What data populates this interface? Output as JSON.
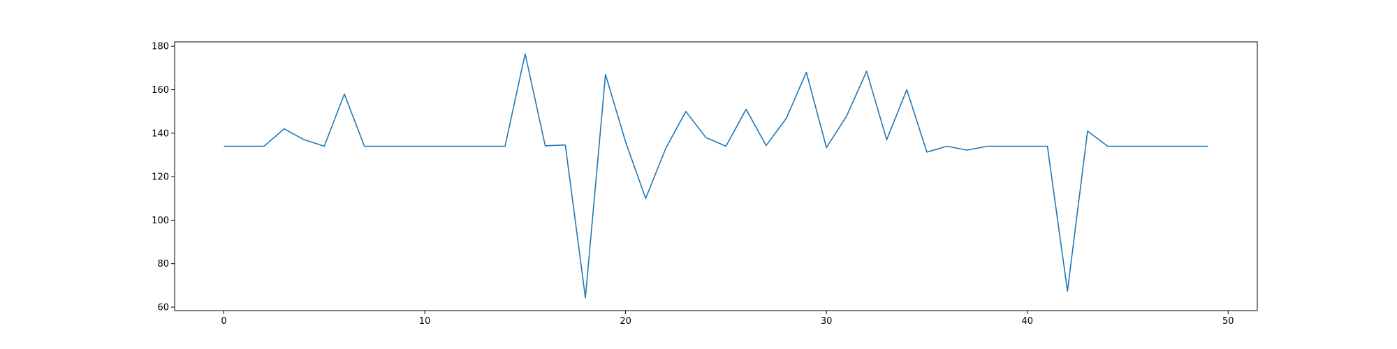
{
  "chart_data": {
    "type": "line",
    "title": "",
    "xlabel": "",
    "ylabel": "",
    "xlim": [
      -2.45,
      51.45
    ],
    "ylim": [
      58.4,
      182.0
    ],
    "x_ticks": [
      0,
      10,
      20,
      30,
      40,
      50
    ],
    "y_ticks": [
      60,
      80,
      100,
      120,
      140,
      160,
      180
    ],
    "grid": false,
    "legend": "none",
    "colors": {
      "series": "#1f77b4",
      "axis": "#000000",
      "background": "#ffffff"
    },
    "x": [
      0,
      1,
      2,
      3,
      4,
      5,
      6,
      7,
      8,
      9,
      10,
      11,
      12,
      13,
      14,
      15,
      16,
      17,
      18,
      19,
      20,
      21,
      22,
      23,
      24,
      25,
      26,
      27,
      28,
      29,
      30,
      31,
      32,
      33,
      34,
      35,
      36,
      37,
      38,
      39,
      40,
      41,
      42,
      43,
      44,
      45,
      46,
      47,
      48,
      49
    ],
    "series": [
      {
        "values": [
          134,
          134,
          134,
          142,
          137,
          134,
          158,
          134,
          134,
          134,
          134,
          134,
          134,
          134,
          134,
          176.5,
          134.2,
          134.6,
          64.3,
          167,
          136,
          110,
          133,
          150,
          138,
          134,
          151,
          134.3,
          146.8,
          168,
          133.4,
          147.8,
          168.5,
          137,
          160,
          131.3,
          134,
          132.2,
          134,
          134,
          134,
          134,
          67.3,
          141,
          134,
          134,
          134,
          134,
          134,
          134
        ]
      }
    ]
  }
}
